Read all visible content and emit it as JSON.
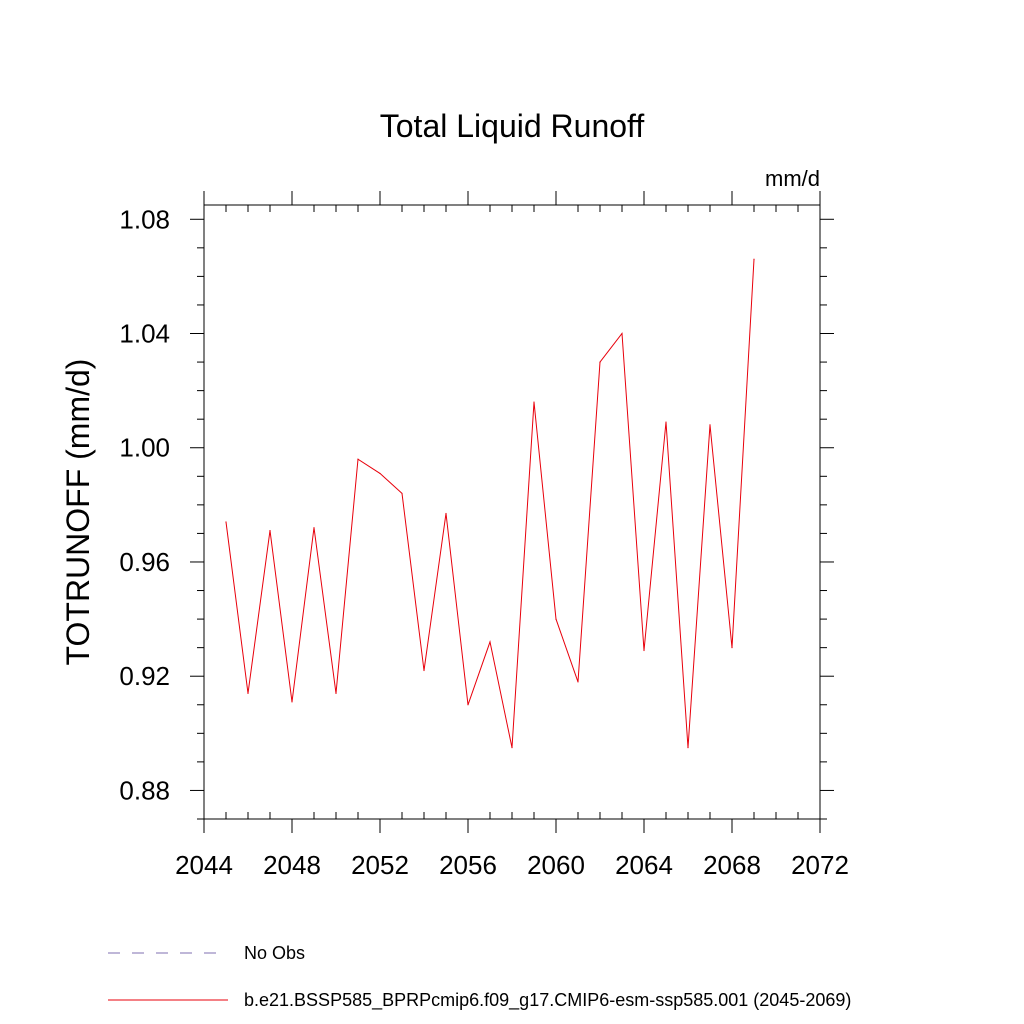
{
  "chart_data": {
    "type": "line",
    "title": "Total Liquid Runoff",
    "units_label": "mm/d",
    "ylabel": "TOTRUNOFF  (mm/d)",
    "xlabel": "",
    "xlim": [
      2044,
      2072
    ],
    "ylim": [
      0.87,
      1.085
    ],
    "x_ticks": [
      2044,
      2048,
      2052,
      2056,
      2060,
      2064,
      2068,
      2072
    ],
    "x_tick_labels": [
      "2044",
      "2048",
      "2052",
      "2056",
      "2060",
      "2064",
      "2068",
      "2072"
    ],
    "y_ticks": [
      0.88,
      0.92,
      0.96,
      1.0,
      1.04,
      1.08
    ],
    "y_tick_labels": [
      "0.88",
      "0.92",
      "0.96",
      "1.00",
      "1.04",
      "1.08"
    ],
    "grid": false,
    "legend_position": "bottom",
    "series": [
      {
        "name": "b.e21.BSSP585_BPRPcmip6.f09_g17.CMIP6-esm-ssp585.001 (2045-2069)",
        "color": "#e8000b",
        "dash": "solid",
        "x": [
          2045,
          2046,
          2047,
          2048,
          2049,
          2050,
          2051,
          2052,
          2053,
          2054,
          2055,
          2056,
          2057,
          2058,
          2059,
          2060,
          2061,
          2062,
          2063,
          2064,
          2065,
          2066,
          2067,
          2068,
          2069
        ],
        "values": [
          0.974,
          0.914,
          0.971,
          0.911,
          0.972,
          0.914,
          0.996,
          0.991,
          0.984,
          0.922,
          0.977,
          0.91,
          0.932,
          0.895,
          1.016,
          0.94,
          0.918,
          1.03,
          1.04,
          0.929,
          1.009,
          0.895,
          1.008,
          0.93,
          1.066
        ]
      }
    ],
    "legend": [
      {
        "label": "No Obs",
        "color": "#7f6fb0",
        "dash": "dashed"
      },
      {
        "label": "b.e21.BSSP585_BPRPcmip6.f09_g17.CMIP6-esm-ssp585.001 (2045-2069)",
        "color": "#e8000b",
        "dash": "solid"
      }
    ]
  }
}
